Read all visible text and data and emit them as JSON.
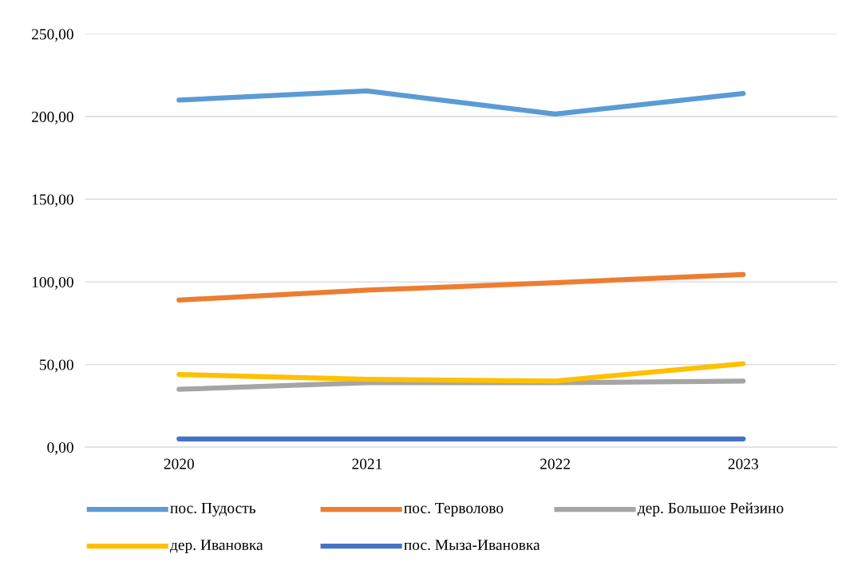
{
  "chart_data": {
    "type": "line",
    "categories": [
      "2020",
      "2021",
      "2022",
      "2023"
    ],
    "series": [
      {
        "name": "пос. Пудость",
        "color": "#5b9bd5",
        "values": [
          210,
          215.5,
          201.5,
          214
        ]
      },
      {
        "name": "пос. Терволово",
        "color": "#ed7d31",
        "values": [
          89,
          95,
          99.5,
          104.5
        ]
      },
      {
        "name": "дер. Большое Рейзино",
        "color": "#a5a5a5",
        "values": [
          35,
          39,
          39,
          40
        ]
      },
      {
        "name": "дер. Ивановка",
        "color": "#ffc000",
        "values": [
          44,
          41,
          40,
          50.5
        ]
      },
      {
        "name": "пос. Мыза-Ивановка",
        "color": "#4472c4",
        "values": [
          5,
          5,
          5,
          5
        ]
      }
    ],
    "ylim": [
      0,
      250
    ],
    "yticks": [
      {
        "value": 0,
        "label": "0,00"
      },
      {
        "value": 50,
        "label": "50,00"
      },
      {
        "value": 100,
        "label": "100,00"
      },
      {
        "value": 150,
        "label": "150,00"
      },
      {
        "value": 200,
        "label": "200,00"
      },
      {
        "value": 250,
        "label": "250,00"
      }
    ],
    "grid": "y",
    "legend": "bottom",
    "marker": "none",
    "line_style": "solid"
  }
}
